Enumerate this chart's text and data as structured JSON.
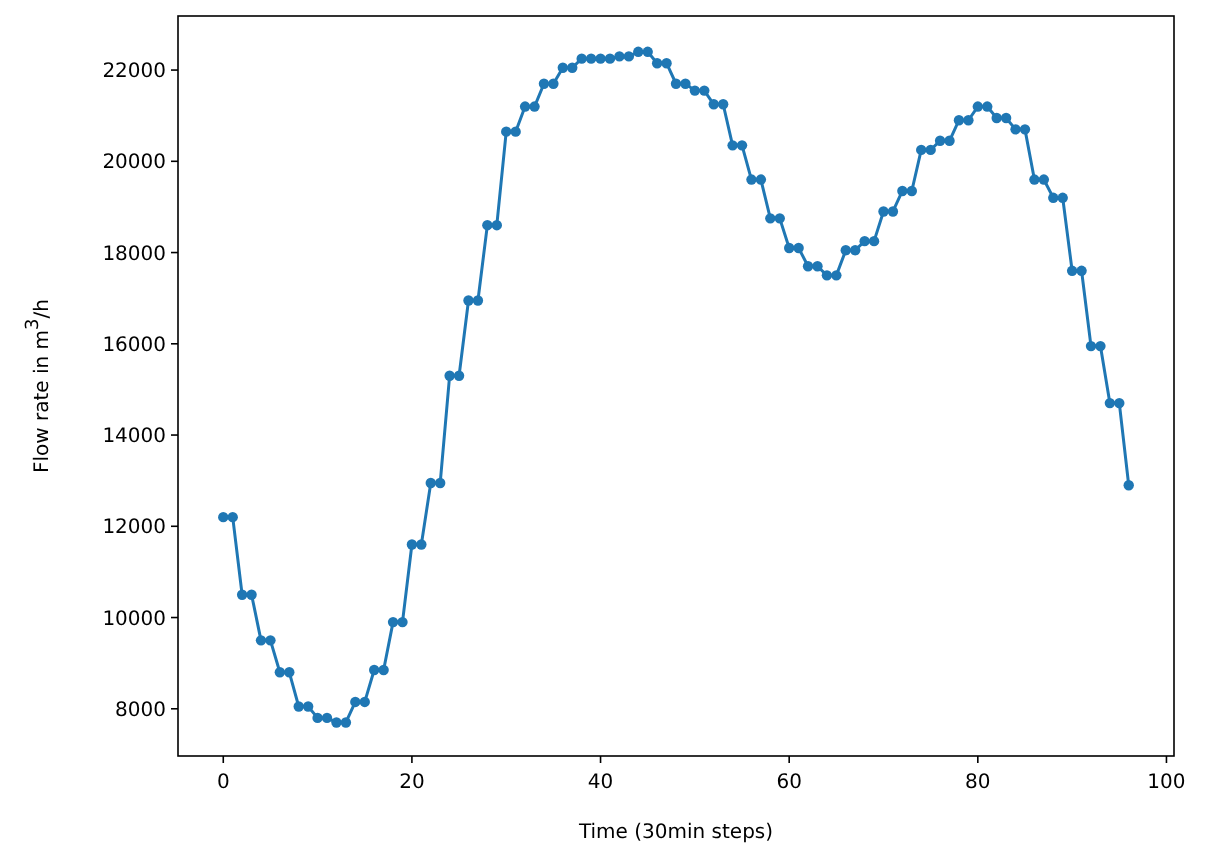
{
  "chart_data": {
    "type": "line",
    "xlabel": "Time (30min steps)",
    "ylabel": "Flow rate in m$^{3}$/h",
    "x": [
      0,
      1,
      2,
      3,
      4,
      5,
      6,
      7,
      8,
      9,
      10,
      11,
      12,
      13,
      14,
      15,
      16,
      17,
      18,
      19,
      20,
      21,
      22,
      23,
      24,
      25,
      26,
      27,
      28,
      29,
      30,
      31,
      32,
      33,
      34,
      35,
      36,
      37,
      38,
      39,
      40,
      41,
      42,
      43,
      44,
      45,
      46,
      47,
      48,
      49,
      50,
      51,
      52,
      53,
      54,
      55,
      56,
      57,
      58,
      59,
      60,
      61,
      62,
      63,
      64,
      65,
      66,
      67,
      68,
      69,
      70,
      71,
      72,
      73,
      74,
      75,
      76,
      77,
      78,
      79,
      80,
      81,
      82,
      83,
      84,
      85,
      86,
      87,
      88,
      89,
      90,
      91,
      92,
      93,
      94,
      95,
      96
    ],
    "series": [
      {
        "color": "#1f77b4",
        "values": [
          12200,
          12200,
          10500,
          10500,
          9500,
          9500,
          8800,
          8800,
          8050,
          8050,
          7800,
          7800,
          7700,
          7700,
          8150,
          8150,
          8850,
          8850,
          9900,
          9900,
          11600,
          11600,
          12950,
          12950,
          15300,
          15300,
          16950,
          16950,
          18600,
          18600,
          20650,
          20650,
          21200,
          21200,
          21700,
          21700,
          22050,
          22050,
          22250,
          22250,
          22250,
          22250,
          22300,
          22300,
          22400,
          22400,
          22150,
          22150,
          21700,
          21700,
          21550,
          21550,
          21250,
          21250,
          20350,
          20350,
          19600,
          19600,
          18750,
          18750,
          18100,
          18100,
          17700,
          17700,
          17500,
          17500,
          18050,
          18050,
          18250,
          18250,
          18900,
          18900,
          19350,
          19350,
          20250,
          20250,
          20450,
          20450,
          20900,
          20900,
          21200,
          21200,
          20950,
          20950,
          20700,
          20700,
          19600,
          19600,
          19200,
          19200,
          17600,
          17600,
          15950,
          15950,
          14700,
          14700,
          12900
        ]
      }
    ],
    "xlim": [
      -4.8,
      100.8
    ],
    "ylim": [
      6965,
      23185
    ],
    "xticks": [
      0,
      20,
      40,
      60,
      80,
      100
    ],
    "yticks": [
      8000,
      10000,
      12000,
      14000,
      16000,
      18000,
      20000,
      22000
    ],
    "marker": "circle",
    "line_style": "solid",
    "grid": false
  }
}
